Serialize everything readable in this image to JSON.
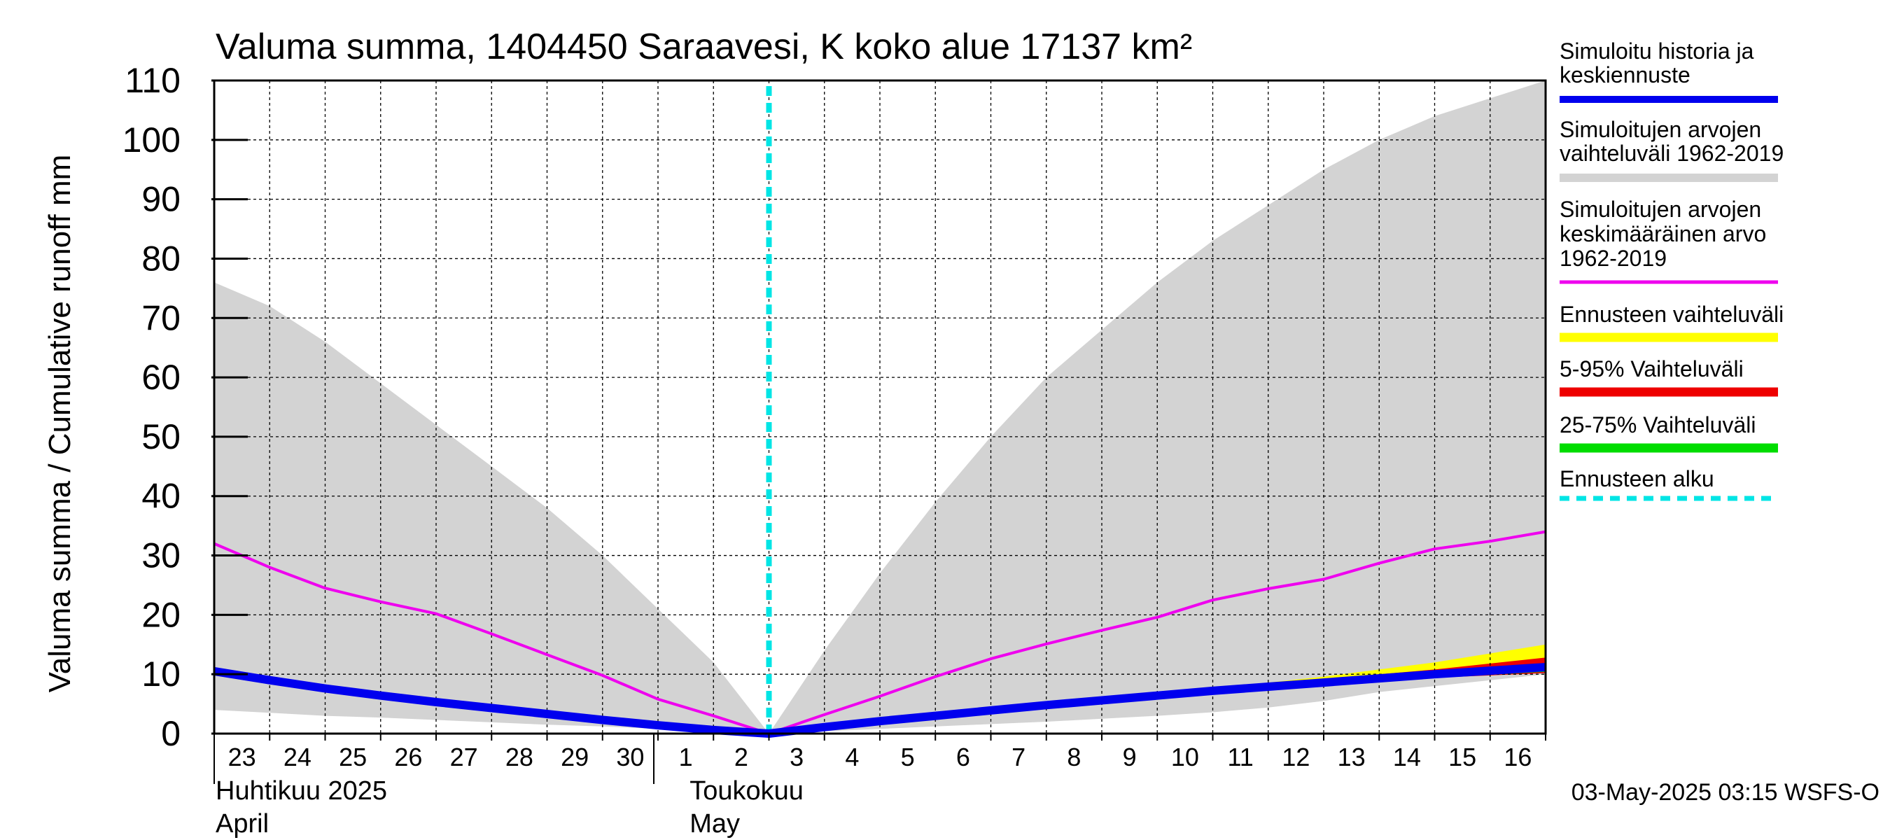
{
  "chart_data": {
    "type": "area",
    "title": "Valuma summa, 1404450 Saraavesi, K koko alue 17137 km²",
    "ylabel": "Valuma summa / Cumulative runoff     mm",
    "ylim": [
      0,
      110
    ],
    "yticks": [
      0,
      10,
      20,
      30,
      40,
      50,
      60,
      70,
      80,
      90,
      100,
      110
    ],
    "xlim": [
      "2025-04-23",
      "2025-05-17"
    ],
    "x_tick_labels": [
      "23",
      "24",
      "25",
      "26",
      "27",
      "28",
      "29",
      "30",
      "1",
      "2",
      "3",
      "4",
      "5",
      "6",
      "7",
      "8",
      "9",
      "10",
      "11",
      "12",
      "13",
      "14",
      "15",
      "16"
    ],
    "month_labels": [
      {
        "fi": "Huhtikuu  2025",
        "en": "April"
      },
      {
        "fi": "Toukokuu",
        "en": "May"
      }
    ],
    "grid": true,
    "legend_position": "right",
    "forecast_start": "2025-05-03",
    "footer": "03-May-2025 03:15 WSFS-O",
    "legend": [
      {
        "label_lines": [
          "Simuloitu historia ja",
          "keskiennuste"
        ],
        "color": "#0000ee",
        "style": "line"
      },
      {
        "label_lines": [
          "Simuloitujen arvojen",
          "vaihteluväli 1962-2019"
        ],
        "color": "#d3d3d3",
        "style": "band"
      },
      {
        "label_lines": [
          "Simuloitujen arvojen",
          "keskimääräinen arvo",
          "   1962-2019"
        ],
        "color": "#ee00ee",
        "style": "line"
      },
      {
        "label_lines": [
          "Ennusteen vaihteluväli"
        ],
        "color": "#ffff00",
        "style": "band"
      },
      {
        "label_lines": [
          "5-95% Vaihteluväli"
        ],
        "color": "#ee0000",
        "style": "band"
      },
      {
        "label_lines": [
          "25-75% Vaihteluväli"
        ],
        "color": "#00dd00",
        "style": "band"
      },
      {
        "label_lines": [
          "Ennusteen alku"
        ],
        "color": "#00e5e5",
        "style": "dashed"
      }
    ],
    "series": [
      {
        "name": "Simuloitujen arvojen vaihteluväli 1962-2019",
        "kind": "band",
        "x": [
          "2025-04-23",
          "2025-04-24",
          "2025-04-25",
          "2025-04-26",
          "2025-04-27",
          "2025-04-28",
          "2025-04-29",
          "2025-04-30",
          "2025-05-01",
          "2025-05-02",
          "2025-05-03",
          "2025-05-04",
          "2025-05-05",
          "2025-05-06",
          "2025-05-07",
          "2025-05-08",
          "2025-05-09",
          "2025-05-10",
          "2025-05-11",
          "2025-05-12",
          "2025-05-13",
          "2025-05-14",
          "2025-05-15",
          "2025-05-16",
          "2025-05-17"
        ],
        "upper": [
          76,
          72,
          66,
          59,
          52,
          45,
          38,
          30,
          21,
          12,
          0,
          14,
          27,
          39,
          50,
          60,
          68,
          76,
          83,
          89,
          95,
          100,
          104,
          107,
          110
        ],
        "lower": [
          4,
          3.5,
          3,
          2.7,
          2.3,
          1.9,
          1.5,
          1.2,
          0.8,
          0.4,
          0,
          0.4,
          0.8,
          1.2,
          1.6,
          2.0,
          2.5,
          3.0,
          3.6,
          4.4,
          5.5,
          7.0,
          8.0,
          9.0,
          10.0
        ]
      },
      {
        "name": "Simuloitujen arvojen keskimääräinen arvo 1962-2019",
        "kind": "line",
        "x": [
          "2025-04-23",
          "2025-04-24",
          "2025-04-25",
          "2025-04-26",
          "2025-04-27",
          "2025-04-28",
          "2025-04-29",
          "2025-04-30",
          "2025-05-01",
          "2025-05-02",
          "2025-05-03",
          "2025-05-04",
          "2025-05-05",
          "2025-05-06",
          "2025-05-07",
          "2025-05-08",
          "2025-05-09",
          "2025-05-10",
          "2025-05-11",
          "2025-05-12",
          "2025-05-13",
          "2025-05-14",
          "2025-05-15",
          "2025-05-16",
          "2025-05-17"
        ],
        "y": [
          32,
          28,
          24.5,
          22.2,
          20.2,
          16.8,
          13.3,
          9.8,
          5.8,
          3.0,
          0,
          3.2,
          6.3,
          9.6,
          12.6,
          15.1,
          17.4,
          19.6,
          22.5,
          24.4,
          26.0,
          28.7,
          31.1,
          32.4,
          34.0
        ]
      },
      {
        "name": "Ennusteen vaihteluväli",
        "kind": "band",
        "x": [
          "2025-05-10",
          "2025-05-11",
          "2025-05-12",
          "2025-05-13",
          "2025-05-14",
          "2025-05-15",
          "2025-05-16",
          "2025-05-17"
        ],
        "upper": [
          6.4,
          7.6,
          8.6,
          9.6,
          10.8,
          12.0,
          13.5,
          15.0
        ],
        "lower": [
          6.2,
          7.0,
          7.8,
          8.5,
          9.1,
          9.6,
          10.0,
          10.4
        ]
      },
      {
        "name": "5-95% Vaihteluväli",
        "kind": "band",
        "x": [
          "2025-05-10",
          "2025-05-11",
          "2025-05-12",
          "2025-05-13",
          "2025-05-14",
          "2025-05-15",
          "2025-05-16",
          "2025-05-17"
        ],
        "upper": [
          6.4,
          7.4,
          8.2,
          9.1,
          10.0,
          10.8,
          11.8,
          12.8
        ],
        "lower": [
          6.2,
          6.9,
          7.6,
          8.3,
          8.9,
          9.4,
          9.8,
          10.2
        ]
      },
      {
        "name": "25-75% Vaihteluväli",
        "kind": "band",
        "x": [
          "2025-05-10",
          "2025-05-11",
          "2025-05-12",
          "2025-05-13",
          "2025-05-14",
          "2025-05-15",
          "2025-05-16",
          "2025-05-17"
        ],
        "upper": [
          6.3,
          7.0,
          7.7,
          8.4,
          9.0,
          9.6,
          10.1,
          10.7
        ],
        "lower": [
          6.2,
          6.9,
          7.6,
          8.3,
          8.9,
          9.4,
          9.9,
          10.4
        ]
      },
      {
        "name": "Simuloitu historia ja keskiennuste",
        "kind": "line",
        "x": [
          "2025-04-23",
          "2025-04-24",
          "2025-04-25",
          "2025-04-26",
          "2025-04-27",
          "2025-04-28",
          "2025-04-29",
          "2025-04-30",
          "2025-05-01",
          "2025-05-02",
          "2025-05-03",
          "2025-05-04",
          "2025-05-05",
          "2025-05-06",
          "2025-05-07",
          "2025-05-08",
          "2025-05-09",
          "2025-05-10",
          "2025-05-11",
          "2025-05-12",
          "2025-05-13",
          "2025-05-14",
          "2025-05-15",
          "2025-05-16",
          "2025-05-17"
        ],
        "y": [
          10.5,
          9.0,
          7.6,
          6.4,
          5.3,
          4.3,
          3.3,
          2.3,
          1.4,
          0.6,
          0,
          1.1,
          2.1,
          3.0,
          3.9,
          4.8,
          5.6,
          6.4,
          7.2,
          7.9,
          8.6,
          9.3,
          10.0,
          10.6,
          11.2
        ]
      }
    ]
  }
}
